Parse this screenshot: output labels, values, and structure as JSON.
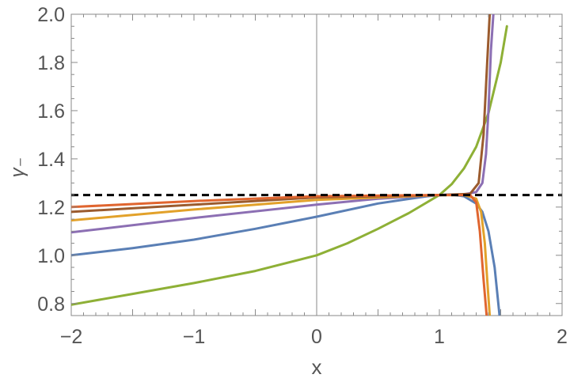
{
  "chart_data": {
    "type": "line",
    "xlabel": "x",
    "ylabel": "γ₋",
    "xlim": [
      -2,
      2
    ],
    "ylim": [
      0.75,
      2.0
    ],
    "xticks": [
      -2,
      -1,
      0,
      1,
      2
    ],
    "xtick_labels": [
      "−2",
      "−1",
      "0",
      "1",
      "2"
    ],
    "yticks": [
      0.8,
      1.0,
      1.2,
      1.4,
      1.6,
      1.8,
      2.0
    ],
    "ytick_labels": [
      "0.8",
      "1.0",
      "1.2",
      "1.4",
      "1.6",
      "1.8",
      "2.0"
    ],
    "grid": false,
    "reference_line": {
      "y": 1.25,
      "style": "dashed",
      "color": "#000000"
    },
    "series": [
      {
        "color": "#8eb036",
        "x": [
          -2,
          -1.5,
          -1,
          -0.5,
          0,
          0.25,
          0.5,
          0.75,
          1.0,
          1.1,
          1.2,
          1.3,
          1.4,
          1.5,
          1.55
        ],
        "y": [
          0.795,
          0.84,
          0.885,
          0.935,
          1.0,
          1.05,
          1.11,
          1.175,
          1.25,
          1.295,
          1.36,
          1.45,
          1.59,
          1.8,
          1.95
        ]
      },
      {
        "color": "#5a7fb5",
        "x": [
          -2,
          -1.5,
          -1,
          -0.5,
          0,
          0.5,
          0.9,
          1.0,
          1.1,
          1.2,
          1.3,
          1.35,
          1.4,
          1.45,
          1.49
        ],
        "y": [
          1.0,
          1.03,
          1.065,
          1.11,
          1.16,
          1.215,
          1.245,
          1.25,
          1.252,
          1.245,
          1.215,
          1.18,
          1.1,
          0.95,
          0.75
        ]
      },
      {
        "color": "#8c6fb3",
        "x": [
          -2,
          -1,
          0,
          0.5,
          1.0,
          1.2,
          1.3,
          1.35,
          1.38,
          1.4,
          1.42,
          1.44
        ],
        "y": [
          1.095,
          1.155,
          1.21,
          1.235,
          1.25,
          1.253,
          1.262,
          1.3,
          1.42,
          1.6,
          1.85,
          2.0
        ]
      },
      {
        "color": "#e2a12a",
        "x": [
          -2,
          -1,
          0,
          1.0,
          1.2,
          1.3,
          1.34,
          1.37,
          1.39,
          1.41
        ],
        "y": [
          1.145,
          1.19,
          1.23,
          1.25,
          1.25,
          1.235,
          1.18,
          1.05,
          0.9,
          0.75
        ]
      },
      {
        "color": "#9b5b2e",
        "x": [
          -2,
          -1,
          0,
          1.0,
          1.25,
          1.32,
          1.36,
          1.39,
          1.41
        ],
        "y": [
          1.18,
          1.21,
          1.24,
          1.25,
          1.255,
          1.3,
          1.5,
          1.8,
          2.0
        ]
      },
      {
        "color": "#e0652f",
        "x": [
          -2,
          -1,
          0,
          1.0,
          1.25,
          1.3,
          1.33,
          1.36,
          1.385
        ],
        "y": [
          1.2,
          1.225,
          1.245,
          1.25,
          1.25,
          1.22,
          1.1,
          0.9,
          0.75
        ]
      }
    ]
  }
}
